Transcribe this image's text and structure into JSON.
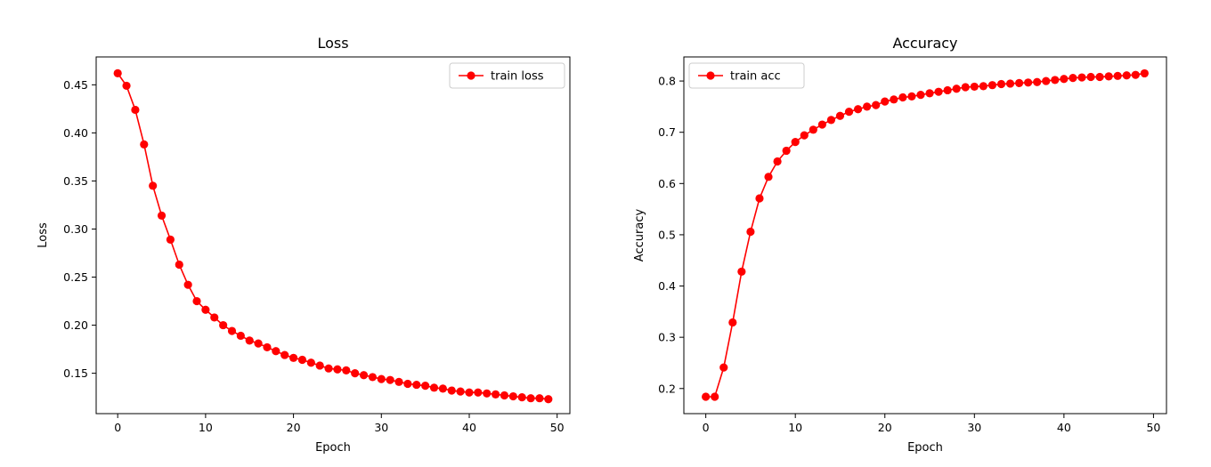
{
  "chart_data": [
    {
      "type": "line",
      "title": "Loss",
      "xlabel": "Epoch",
      "ylabel": "Loss",
      "xlim": [
        -2.45,
        51.45
      ],
      "ylim": [
        0.108,
        0.479
      ],
      "xticks": [
        0,
        10,
        20,
        30,
        40,
        50
      ],
      "yticks": [
        0.15,
        0.2,
        0.25,
        0.3,
        0.35,
        0.4,
        0.45
      ],
      "ytick_decimals": 2,
      "grid": false,
      "legend_position": "top-right",
      "series": [
        {
          "name": "train loss",
          "color": "#ff0000",
          "marker": "circle",
          "x": [
            0,
            1,
            2,
            3,
            4,
            5,
            6,
            7,
            8,
            9,
            10,
            11,
            12,
            13,
            14,
            15,
            16,
            17,
            18,
            19,
            20,
            21,
            22,
            23,
            24,
            25,
            26,
            27,
            28,
            29,
            30,
            31,
            32,
            33,
            34,
            35,
            36,
            37,
            38,
            39,
            40,
            41,
            42,
            43,
            44,
            45,
            46,
            47,
            48,
            49
          ],
          "y": [
            0.462,
            0.449,
            0.424,
            0.388,
            0.345,
            0.314,
            0.289,
            0.263,
            0.242,
            0.225,
            0.216,
            0.208,
            0.2,
            0.194,
            0.189,
            0.184,
            0.181,
            0.177,
            0.173,
            0.169,
            0.166,
            0.164,
            0.161,
            0.158,
            0.155,
            0.154,
            0.153,
            0.15,
            0.148,
            0.146,
            0.144,
            0.143,
            0.141,
            0.139,
            0.138,
            0.137,
            0.135,
            0.134,
            0.132,
            0.131,
            0.13,
            0.13,
            0.129,
            0.128,
            0.127,
            0.126,
            0.125,
            0.124,
            0.124,
            0.123
          ]
        }
      ]
    },
    {
      "type": "line",
      "title": "Accuracy",
      "xlabel": "Epoch",
      "ylabel": "Accuracy",
      "xlim": [
        -2.45,
        51.45
      ],
      "ylim": [
        0.151,
        0.847
      ],
      "xticks": [
        0,
        10,
        20,
        30,
        40,
        50
      ],
      "yticks": [
        0.2,
        0.3,
        0.4,
        0.5,
        0.6,
        0.7,
        0.8
      ],
      "ytick_decimals": 1,
      "grid": false,
      "legend_position": "top-left",
      "series": [
        {
          "name": "train acc",
          "color": "#ff0000",
          "marker": "circle",
          "x": [
            0,
            1,
            2,
            3,
            4,
            5,
            6,
            7,
            8,
            9,
            10,
            11,
            12,
            13,
            14,
            15,
            16,
            17,
            18,
            19,
            20,
            21,
            22,
            23,
            24,
            25,
            26,
            27,
            28,
            29,
            30,
            31,
            32,
            33,
            34,
            35,
            36,
            37,
            38,
            39,
            40,
            41,
            42,
            43,
            44,
            45,
            46,
            47,
            48,
            49
          ],
          "y": [
            0.184,
            0.184,
            0.241,
            0.329,
            0.428,
            0.506,
            0.571,
            0.613,
            0.643,
            0.664,
            0.681,
            0.694,
            0.705,
            0.715,
            0.724,
            0.732,
            0.74,
            0.745,
            0.75,
            0.753,
            0.76,
            0.764,
            0.768,
            0.77,
            0.773,
            0.776,
            0.779,
            0.782,
            0.785,
            0.788,
            0.789,
            0.79,
            0.792,
            0.794,
            0.795,
            0.796,
            0.797,
            0.798,
            0.8,
            0.802,
            0.804,
            0.806,
            0.807,
            0.808,
            0.808,
            0.809,
            0.81,
            0.811,
            0.812,
            0.815
          ]
        }
      ]
    }
  ]
}
